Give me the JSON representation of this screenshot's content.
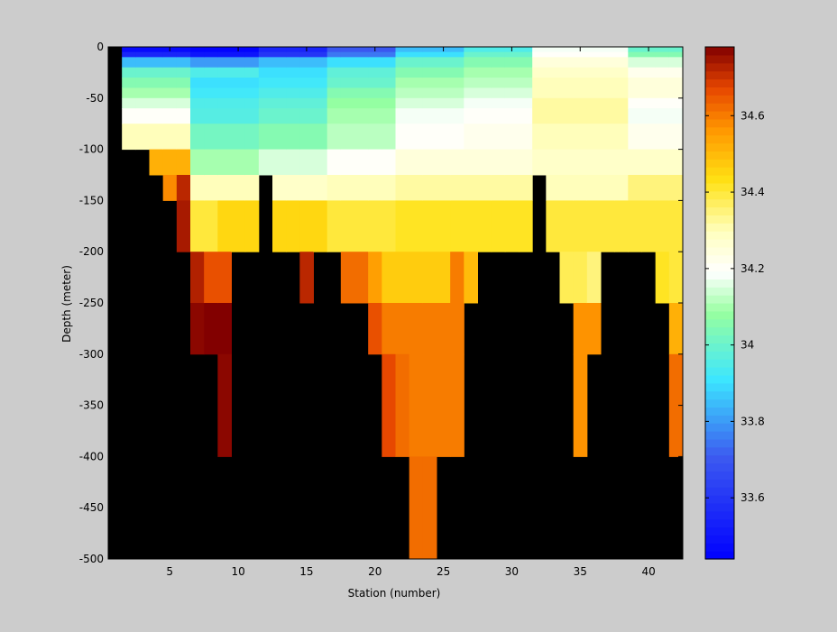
{
  "chart_data": {
    "type": "heatmap",
    "title": "",
    "xlabel": "Station (number)",
    "ylabel": "Depth (meter)",
    "xlim": [
      1,
      42
    ],
    "ylim": [
      -500,
      0
    ],
    "x_ticks": [
      5,
      10,
      15,
      20,
      25,
      30,
      35,
      40
    ],
    "y_ticks": [
      0,
      -50,
      -100,
      -150,
      -200,
      -250,
      -300,
      -350,
      -400,
      -450,
      -500
    ],
    "colorbar": {
      "range": [
        33.44,
        34.78
      ],
      "ticks": [
        33.6,
        33.8,
        34,
        34.2,
        34.4,
        34.6
      ],
      "colormap": "jet-white-centered",
      "placement": "right"
    },
    "no_data_color": "#000000",
    "background_color": "#cccccc",
    "stations_x_edges": [
      2,
      42
    ],
    "depth_edges": [
      0,
      5,
      10,
      20,
      30,
      40,
      50,
      60,
      75,
      100,
      125,
      150,
      200,
      250,
      300,
      400,
      500
    ],
    "base_profiles": [
      {
        "upto": 6,
        "values": [
          33.47,
          33.55,
          33.85,
          34.0,
          34.05,
          34.1,
          34.15,
          34.2,
          34.3,
          34.52,
          34.72,
          34.74,
          34.76,
          34.76,
          34.77,
          34.77
        ]
      },
      {
        "upto": 11,
        "values": [
          33.45,
          33.5,
          33.8,
          33.95,
          33.9,
          33.92,
          33.95,
          33.96,
          34.02,
          34.1,
          34.3,
          34.45,
          34.7,
          34.77,
          34.78,
          34.78
        ]
      },
      {
        "upto": 16,
        "values": [
          33.55,
          33.6,
          33.85,
          33.9,
          33.92,
          33.95,
          33.98,
          34.0,
          34.05,
          34.15,
          34.28,
          34.45,
          34.72,
          34.73,
          34.6,
          34.6
        ]
      },
      {
        "upto": 21,
        "values": [
          33.7,
          33.75,
          33.9,
          33.98,
          34.0,
          34.05,
          34.08,
          34.1,
          34.12,
          34.2,
          34.3,
          34.4,
          34.55,
          34.6,
          34.65,
          34.62
        ]
      },
      {
        "upto": 26,
        "values": [
          33.85,
          33.9,
          34.0,
          34.05,
          34.1,
          34.12,
          34.15,
          34.18,
          34.2,
          34.25,
          34.32,
          34.42,
          34.5,
          34.57,
          34.6,
          34.62
        ]
      },
      {
        "upto": 31,
        "values": [
          33.95,
          34.0,
          34.05,
          34.1,
          34.12,
          34.15,
          34.18,
          34.2,
          34.22,
          34.25,
          34.32,
          34.42,
          34.5,
          34.6,
          34.6,
          34.6
        ]
      },
      {
        "upto": 38,
        "values": [
          34.18,
          34.2,
          34.25,
          34.28,
          34.3,
          34.3,
          34.32,
          34.32,
          34.3,
          34.28,
          34.3,
          34.4,
          34.35,
          34.53,
          34.58,
          34.58
        ]
      },
      {
        "upto": 42,
        "values": [
          34.0,
          34.05,
          34.15,
          34.22,
          34.25,
          34.25,
          34.2,
          34.18,
          34.22,
          34.28,
          34.35,
          34.4,
          34.35,
          34.55,
          34.62,
          34.62
        ]
      }
    ],
    "max_depth_by_station": [
      {
        "from": 2,
        "to": 3,
        "depth": 100
      },
      {
        "from": 4,
        "to": 4,
        "depth": 125
      },
      {
        "from": 5,
        "to": 5,
        "depth": 150
      },
      {
        "from": 6,
        "to": 6,
        "depth": 200
      },
      {
        "from": 7,
        "to": 7,
        "depth": 300
      },
      {
        "from": 8,
        "to": 8,
        "depth": 300
      },
      {
        "from": 9,
        "to": 9,
        "depth": 400
      },
      {
        "from": 10,
        "to": 11,
        "depth": 200
      },
      {
        "from": 12,
        "to": 12,
        "depth": 125
      },
      {
        "from": 13,
        "to": 14,
        "depth": 200
      },
      {
        "from": 15,
        "to": 15,
        "depth": 250
      },
      {
        "from": 16,
        "to": 16,
        "depth": 200
      },
      {
        "from": 17,
        "to": 17,
        "depth": 200
      },
      {
        "from": 18,
        "to": 19,
        "depth": 250
      },
      {
        "from": 20,
        "to": 20,
        "depth": 300
      },
      {
        "from": 21,
        "to": 22,
        "depth": 400
      },
      {
        "from": 23,
        "to": 24,
        "depth": 500
      },
      {
        "from": 25,
        "to": 26,
        "depth": 400
      },
      {
        "from": 27,
        "to": 27,
        "depth": 250
      },
      {
        "from": 28,
        "to": 31,
        "depth": 200
      },
      {
        "from": 32,
        "to": 32,
        "depth": 125
      },
      {
        "from": 33,
        "to": 33,
        "depth": 200
      },
      {
        "from": 34,
        "to": 34,
        "depth": 250
      },
      {
        "from": 35,
        "to": 35,
        "depth": 400
      },
      {
        "from": 36,
        "to": 36,
        "depth": 300
      },
      {
        "from": 37,
        "to": 40,
        "depth": 200
      },
      {
        "from": 41,
        "to": 41,
        "depth": 250
      },
      {
        "from": 42,
        "to": 42,
        "depth": 400
      }
    ],
    "overrides": [
      {
        "from": 2,
        "to": 2,
        "depth_index": 9,
        "value": 34.52
      },
      {
        "from": 3,
        "to": 3,
        "depth_index": 9,
        "value": 34.5
      },
      {
        "from": 5,
        "to": 5,
        "depth_index": 10,
        "value": 34.58
      },
      {
        "from": 7,
        "to": 8,
        "depth_index": 11,
        "value": 34.4
      },
      {
        "from": 7,
        "to": 7,
        "depth_index": 12,
        "value": 34.73
      },
      {
        "from": 8,
        "to": 9,
        "depth_index": 12,
        "value": 34.66
      },
      {
        "from": 8,
        "to": 9,
        "depth_index": 13,
        "value": 34.78
      },
      {
        "from": 9,
        "to": 9,
        "depth_index": 14,
        "value": 34.77
      },
      {
        "from": 13,
        "to": 13,
        "depth_index": 12,
        "value": 34.74
      },
      {
        "from": 14,
        "to": 14,
        "depth_index": 12,
        "value": 34.7
      },
      {
        "from": 18,
        "to": 19,
        "depth_index": 12,
        "value": 34.62
      },
      {
        "from": 20,
        "to": 20,
        "depth_index": 12,
        "value": 34.55
      },
      {
        "from": 21,
        "to": 26,
        "depth_index": 12,
        "value": 34.47
      },
      {
        "from": 26,
        "to": 26,
        "depth_index": 12,
        "value": 34.6
      },
      {
        "from": 20,
        "to": 20,
        "depth_index": 13,
        "value": 34.66
      },
      {
        "from": 21,
        "to": 26,
        "depth_index": 13,
        "value": 34.6
      },
      {
        "from": 21,
        "to": 21,
        "depth_index": 14,
        "value": 34.67
      },
      {
        "from": 22,
        "to": 22,
        "depth_index": 14,
        "value": 34.62
      },
      {
        "from": 23,
        "to": 26,
        "depth_index": 14,
        "value": 34.6
      },
      {
        "from": 34,
        "to": 35,
        "depth_index": 12,
        "value": 34.38
      },
      {
        "from": 35,
        "to": 36,
        "depth_index": 13,
        "value": 34.57
      },
      {
        "from": 35,
        "to": 35,
        "depth_index": 14,
        "value": 34.57
      },
      {
        "from": 41,
        "to": 41,
        "depth_index": 12,
        "value": 34.42
      },
      {
        "from": 42,
        "to": 42,
        "depth_index": 12,
        "value": 34.4
      },
      {
        "from": 42,
        "to": 42,
        "depth_index": 13,
        "value": 34.52
      },
      {
        "from": 42,
        "to": 42,
        "depth_index": 14,
        "value": 34.62
      }
    ]
  }
}
